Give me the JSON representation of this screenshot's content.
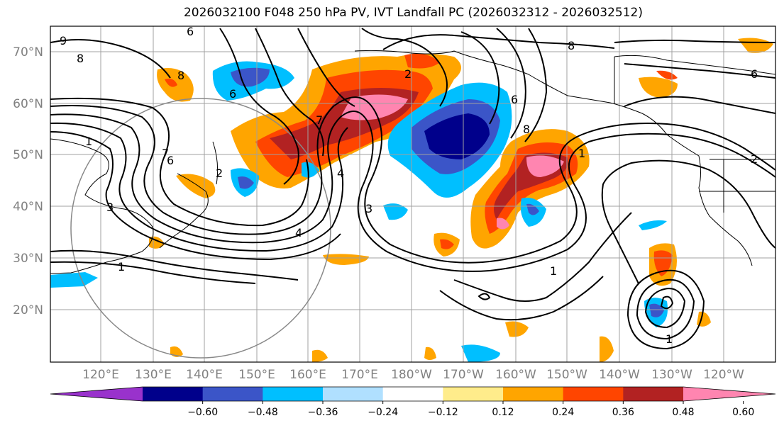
{
  "title": "2026032100 F048 250 hPa PV, IVT Landfall PC (2026032312 - 2026032512)",
  "lat_labels": [
    "70°N",
    "60°N",
    "50°N",
    "40°N",
    "30°N",
    "20°N"
  ],
  "lon_labels": [
    "120°E",
    "130°E",
    "140°E",
    "150°E",
    "160°E",
    "170°E",
    "180°W",
    "170°W",
    "160°W",
    "150°W",
    "140°W",
    "130°W",
    "120°W"
  ],
  "colorbar": {
    "ticks": [
      "−0.60",
      "−0.48",
      "−0.36",
      "−0.24",
      "−0.12",
      "0.12",
      "0.24",
      "0.36",
      "0.48",
      "0.60"
    ],
    "colors": [
      "#9932cc",
      "#00008b",
      "#3b55c8",
      "#00bfff",
      "#b0e0ff",
      "#ffffff",
      "#ffec8b",
      "#ffa500",
      "#ff4500",
      "#b22222",
      "#ff85b0"
    ]
  },
  "contour_labels": [
    "6",
    "9",
    "8",
    "8",
    "6",
    "8",
    "6",
    "6",
    "8",
    "7",
    "1",
    "6",
    "7",
    "2",
    "3",
    "4",
    "1",
    "4",
    "3",
    "2",
    "1",
    "2",
    "1",
    "1"
  ]
}
